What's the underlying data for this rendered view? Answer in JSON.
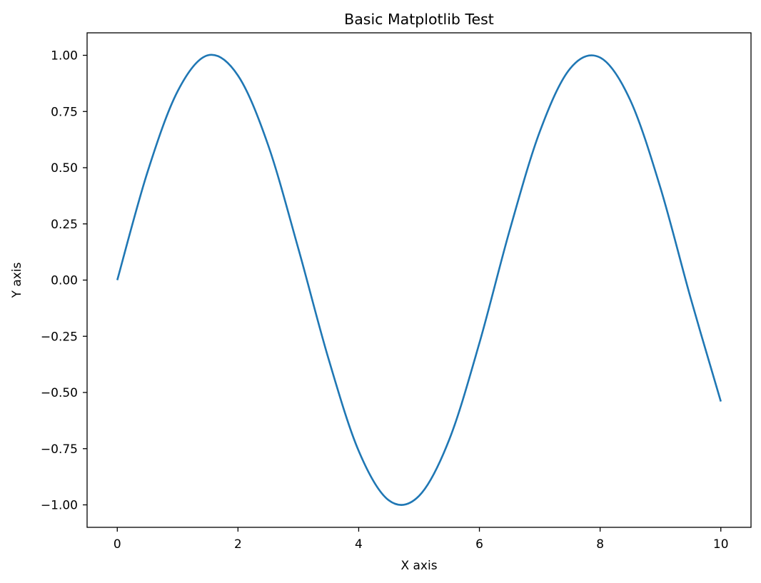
{
  "chart_data": {
    "type": "line",
    "title": "Basic Matplotlib Test",
    "xlabel": "X axis",
    "ylabel": "Y axis",
    "xlim": [
      -0.5,
      10.5
    ],
    "ylim": [
      -1.1,
      1.1
    ],
    "xticks": [
      0,
      2,
      4,
      6,
      8,
      10
    ],
    "xtick_labels": [
      "0",
      "2",
      "4",
      "6",
      "8",
      "10"
    ],
    "yticks": [
      -1.0,
      -0.75,
      -0.5,
      -0.25,
      0.0,
      0.25,
      0.5,
      0.75,
      1.0
    ],
    "ytick_labels": [
      "−1.00",
      "−0.75",
      "−0.50",
      "−0.25",
      "0.00",
      "0.25",
      "0.50",
      "0.75",
      "1.00"
    ],
    "grid": false,
    "series": [
      {
        "color": "#1f77b4",
        "x": [
          0.0,
          0.5,
          1.0,
          1.5,
          2.0,
          2.5,
          3.0,
          3.5,
          4.0,
          4.5,
          5.0,
          5.5,
          6.0,
          6.5,
          7.0,
          7.5,
          8.0,
          8.5,
          9.0,
          9.5,
          10.0
        ],
        "y": [
          0.0,
          0.48,
          0.84,
          1.0,
          0.91,
          0.6,
          0.14,
          -0.35,
          -0.76,
          -0.98,
          -0.96,
          -0.71,
          -0.28,
          0.22,
          0.66,
          0.94,
          0.99,
          0.8,
          0.41,
          -0.08,
          -0.54
        ]
      }
    ]
  }
}
